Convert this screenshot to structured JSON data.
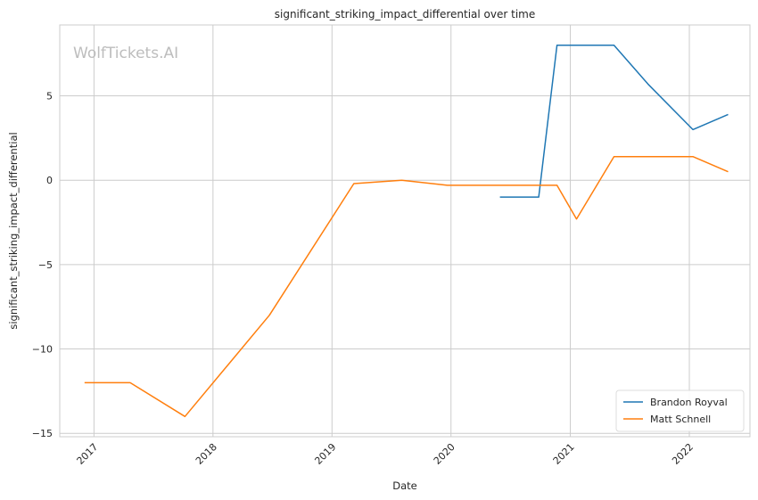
{
  "chart_data": {
    "type": "line",
    "title": "significant_striking_impact_differential over time",
    "xlabel": "Date",
    "ylabel": "significant_striking_impact_differential",
    "watermark": "WolfTickets.AI",
    "xlim": [
      "2016-09-18",
      "2022-07-06"
    ],
    "ylim": [
      -15.2,
      9.2
    ],
    "x_ticks": [
      "2017",
      "2018",
      "2019",
      "2020",
      "2021",
      "2022"
    ],
    "y_ticks": [
      5,
      0,
      -5,
      -10,
      -15
    ],
    "y_tick_labels": [
      "5",
      "0",
      "−5",
      "−10",
      "−15"
    ],
    "grid": true,
    "legend_position": "bottom-right",
    "series": [
      {
        "name": "Brandon Royval",
        "color": "#1f77b4",
        "points": [
          [
            "2020-05-30",
            -1.0
          ],
          [
            "2020-09-26",
            -1.0
          ],
          [
            "2020-11-21",
            8.0
          ],
          [
            "2021-05-15",
            8.0
          ],
          [
            "2021-08-27",
            5.7
          ],
          [
            "2022-01-12",
            3.0
          ],
          [
            "2022-04-30",
            3.9
          ]
        ]
      },
      {
        "name": "Matt Schnell",
        "color": "#ff7f0e",
        "points": [
          [
            "2016-12-03",
            -12.0
          ],
          [
            "2017-04-22",
            -12.0
          ],
          [
            "2017-10-07",
            -14.0
          ],
          [
            "2018-06-23",
            -8.0
          ],
          [
            "2019-03-09",
            -0.2
          ],
          [
            "2019-08-03",
            0.0
          ],
          [
            "2019-12-21",
            -0.3
          ],
          [
            "2020-11-21",
            -0.3
          ],
          [
            "2021-01-20",
            -2.3
          ],
          [
            "2021-05-15",
            1.4
          ],
          [
            "2022-01-12",
            1.4
          ],
          [
            "2022-04-30",
            0.5
          ]
        ]
      }
    ]
  }
}
